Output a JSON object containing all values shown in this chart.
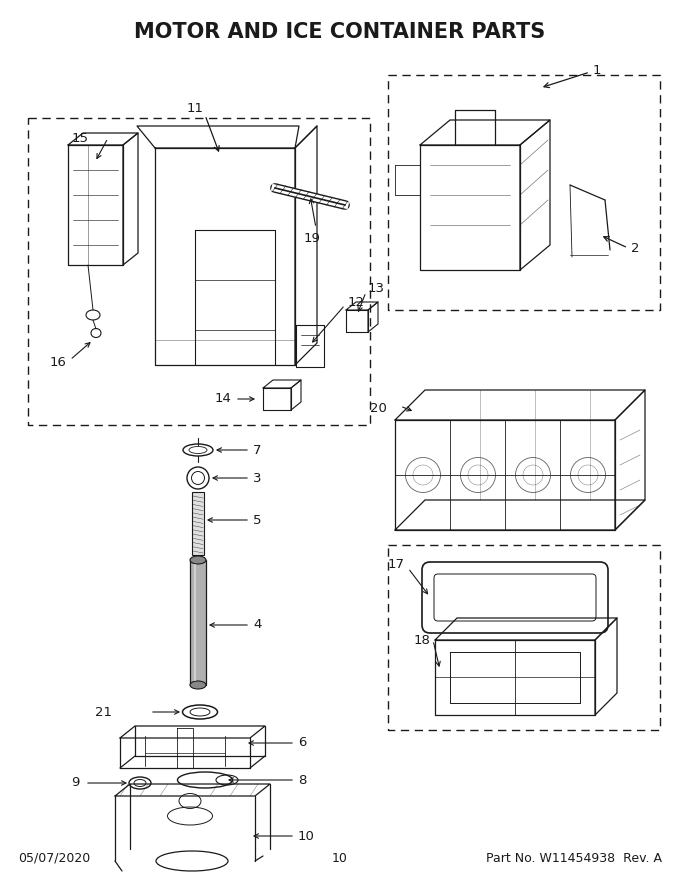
{
  "title": "MOTOR AND ICE CONTAINER PARTS",
  "footer_left": "05/07/2020",
  "footer_center": "10",
  "footer_right": "Part No. W11454938  Rev. A",
  "bg_color": "#ffffff",
  "line_color": "#1a1a1a",
  "gray_color": "#888888",
  "title_fontsize": 15,
  "footer_fontsize": 9,
  "label_fontsize": 9.5,
  "dpi": 100,
  "figw": 6.8,
  "figh": 8.8
}
